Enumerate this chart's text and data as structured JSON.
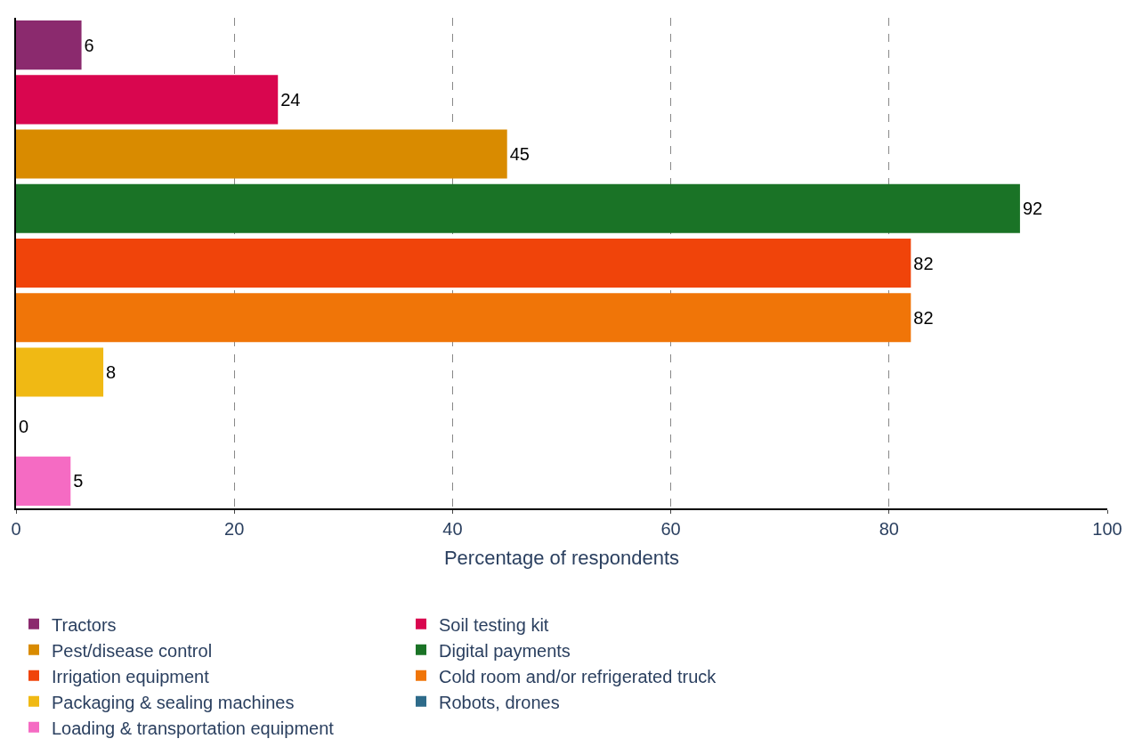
{
  "chart_data": {
    "type": "bar",
    "orientation": "horizontal",
    "xlabel": "Percentage of respondents",
    "categories": [
      null,
      null,
      null,
      null,
      null,
      null,
      null,
      null,
      null
    ],
    "series": [
      {
        "name": "Tractors",
        "color": "#8b2a6e",
        "values": [
          6,
          null,
          null,
          null,
          null,
          null,
          null,
          null,
          null
        ]
      },
      {
        "name": "Soil testing kit",
        "color": "#d9064f",
        "values": [
          null,
          24,
          null,
          null,
          null,
          null,
          null,
          null,
          null
        ]
      },
      {
        "name": "Pest/disease control",
        "color": "#d98b00",
        "values": [
          null,
          null,
          45,
          null,
          null,
          null,
          null,
          null,
          null
        ]
      },
      {
        "name": "Digital payments",
        "color": "#1a7326",
        "values": [
          null,
          null,
          null,
          92,
          null,
          null,
          null,
          null,
          null
        ]
      },
      {
        "name": "Irrigation equipment",
        "color": "#f0440a",
        "values": [
          null,
          null,
          null,
          null,
          82,
          null,
          null,
          null,
          null
        ]
      },
      {
        "name": "Cold room and/or refrigerated truck",
        "color": "#f07508",
        "values": [
          null,
          null,
          null,
          null,
          null,
          82,
          null,
          null,
          null
        ]
      },
      {
        "name": "Packaging & sealing machines",
        "color": "#f0b914",
        "values": [
          null,
          null,
          null,
          null,
          null,
          null,
          8,
          null,
          null
        ]
      },
      {
        "name": "Robots, drones",
        "color": "#2e6b8a",
        "values": [
          null,
          null,
          null,
          null,
          null,
          null,
          null,
          0,
          null
        ]
      },
      {
        "name": "Loading & transportation equipment",
        "color": "#f56bc3",
        "values": [
          null,
          null,
          null,
          null,
          null,
          null,
          null,
          null,
          5
        ]
      }
    ],
    "data_labels": true,
    "xlim": [
      0,
      100
    ],
    "xticks": [
      0,
      20,
      40,
      60,
      80,
      100
    ],
    "grid": "x",
    "legend": "bottom",
    "tick_labels": "x"
  }
}
